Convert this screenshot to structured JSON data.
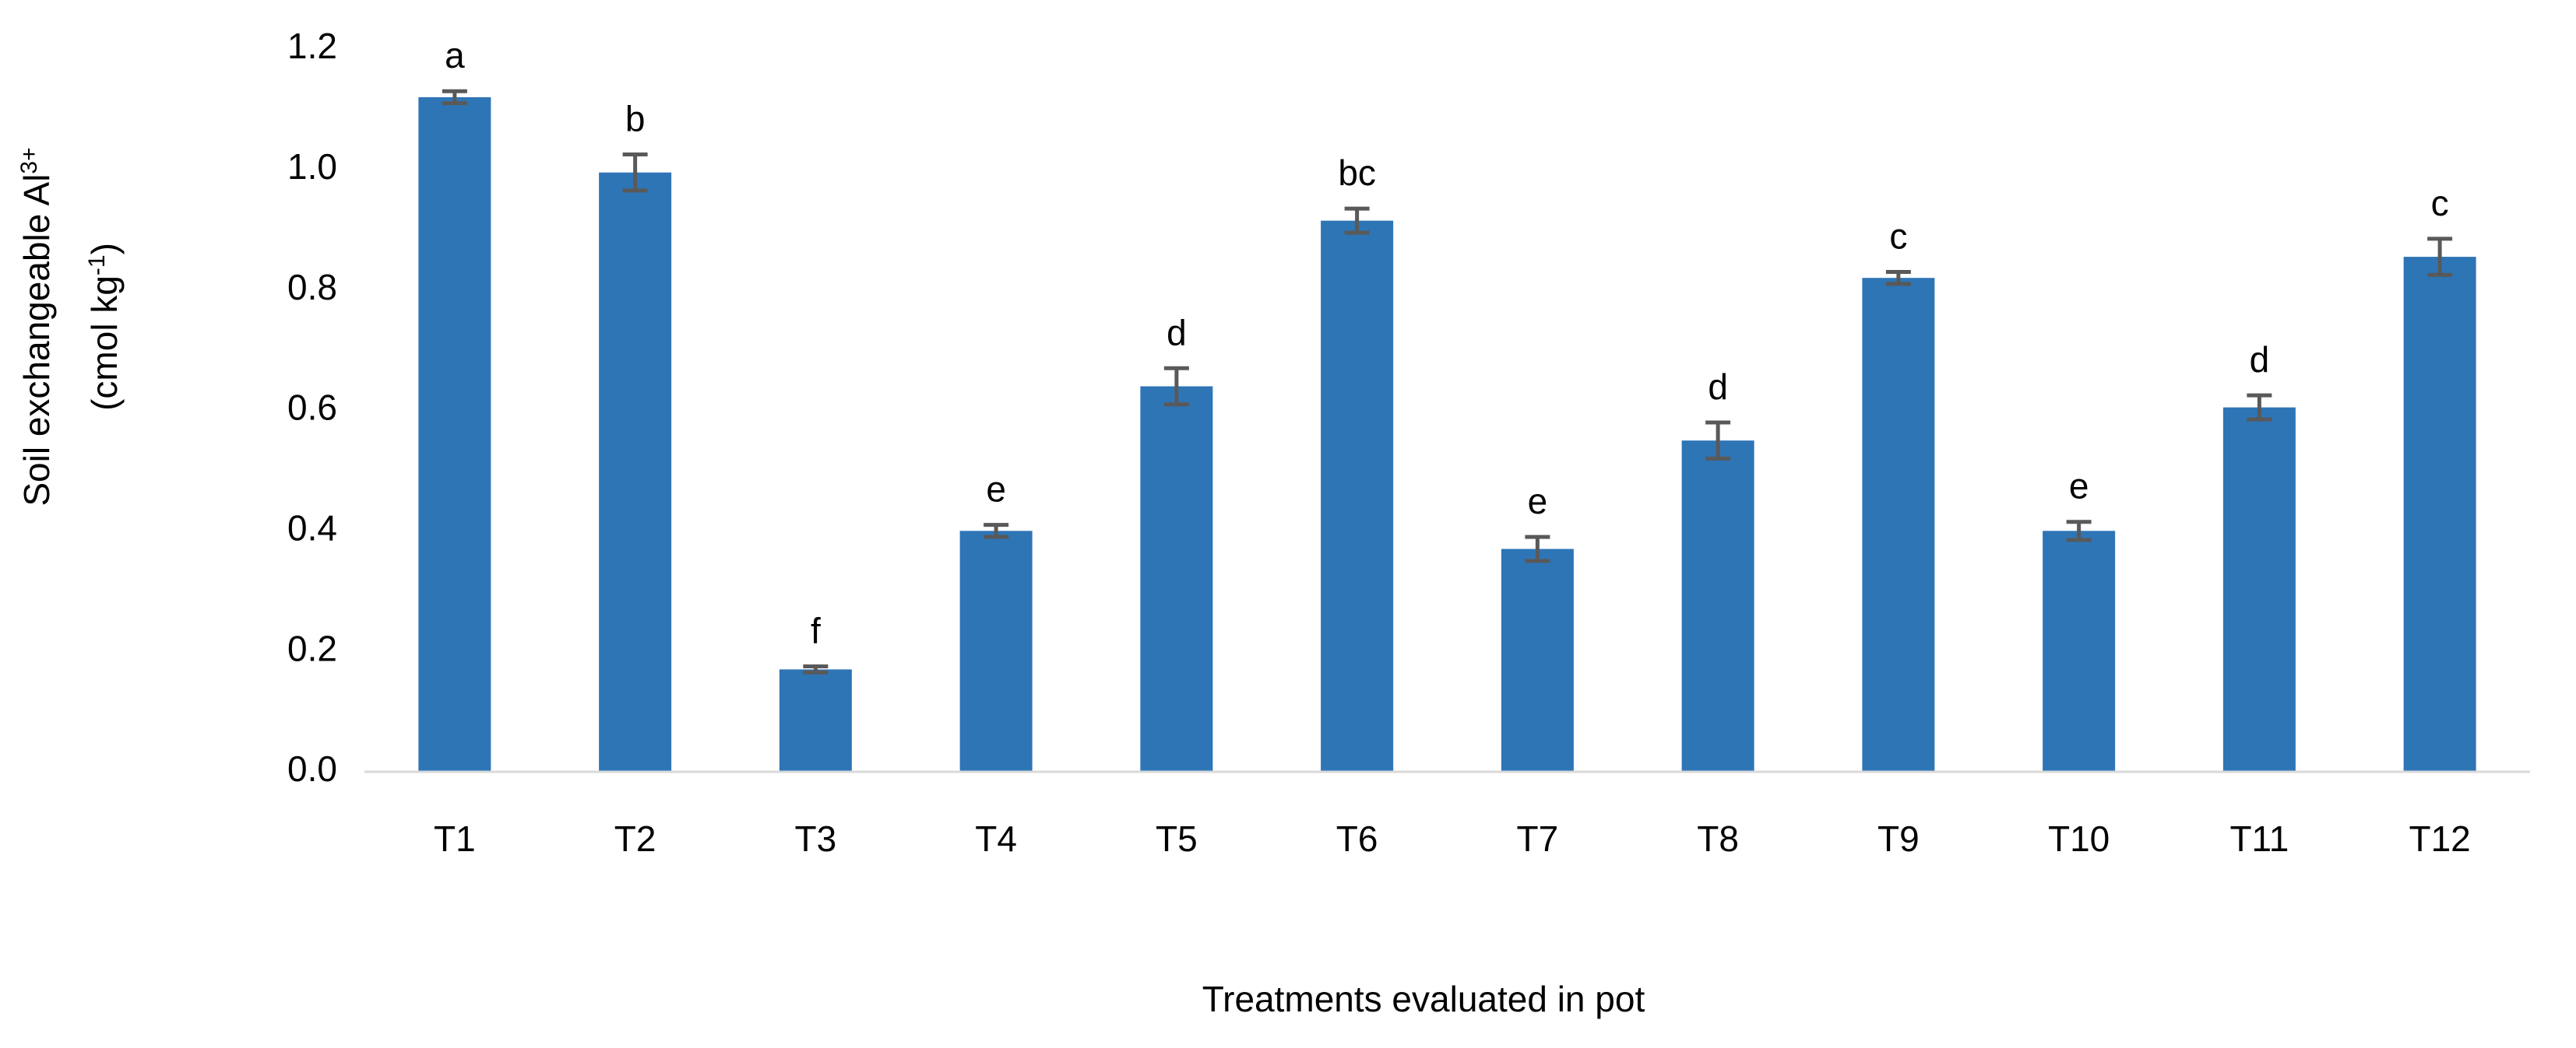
{
  "chart_data": {
    "type": "bar",
    "x_label": "Treatments evaluated in pot",
    "y_label": {
      "line1": "Soil exchangeable Al",
      "line1_sup": "3+",
      "line2_pre": "(cmol kg",
      "line2_sup": "-1",
      "line2_post": ")"
    },
    "categories": [
      "T1",
      "T2",
      "T3",
      "T4",
      "T5",
      "T6",
      "T7",
      "T8",
      "T9",
      "T10",
      "T11",
      "T12"
    ],
    "values": [
      1.12,
      0.995,
      0.17,
      0.4,
      0.64,
      0.915,
      0.37,
      0.55,
      0.82,
      0.4,
      0.605,
      0.855
    ],
    "errors": [
      0.01,
      0.03,
      0.005,
      0.01,
      0.03,
      0.02,
      0.02,
      0.03,
      0.01,
      0.015,
      0.02,
      0.03
    ],
    "letters": [
      "a",
      "b",
      "f",
      "e",
      "d",
      "bc",
      "e",
      "d",
      "c",
      "e",
      "d",
      "c"
    ],
    "color": "#2e75b6",
    "error_color": "#595959",
    "ylim": [
      0,
      1.2
    ],
    "yticks": [
      {
        "value": 0,
        "label": "0.0"
      },
      0.2,
      0.4,
      0.6,
      0.8,
      {
        "value": 1,
        "label": "1.0"
      },
      1.2
    ],
    "grid": false
  }
}
